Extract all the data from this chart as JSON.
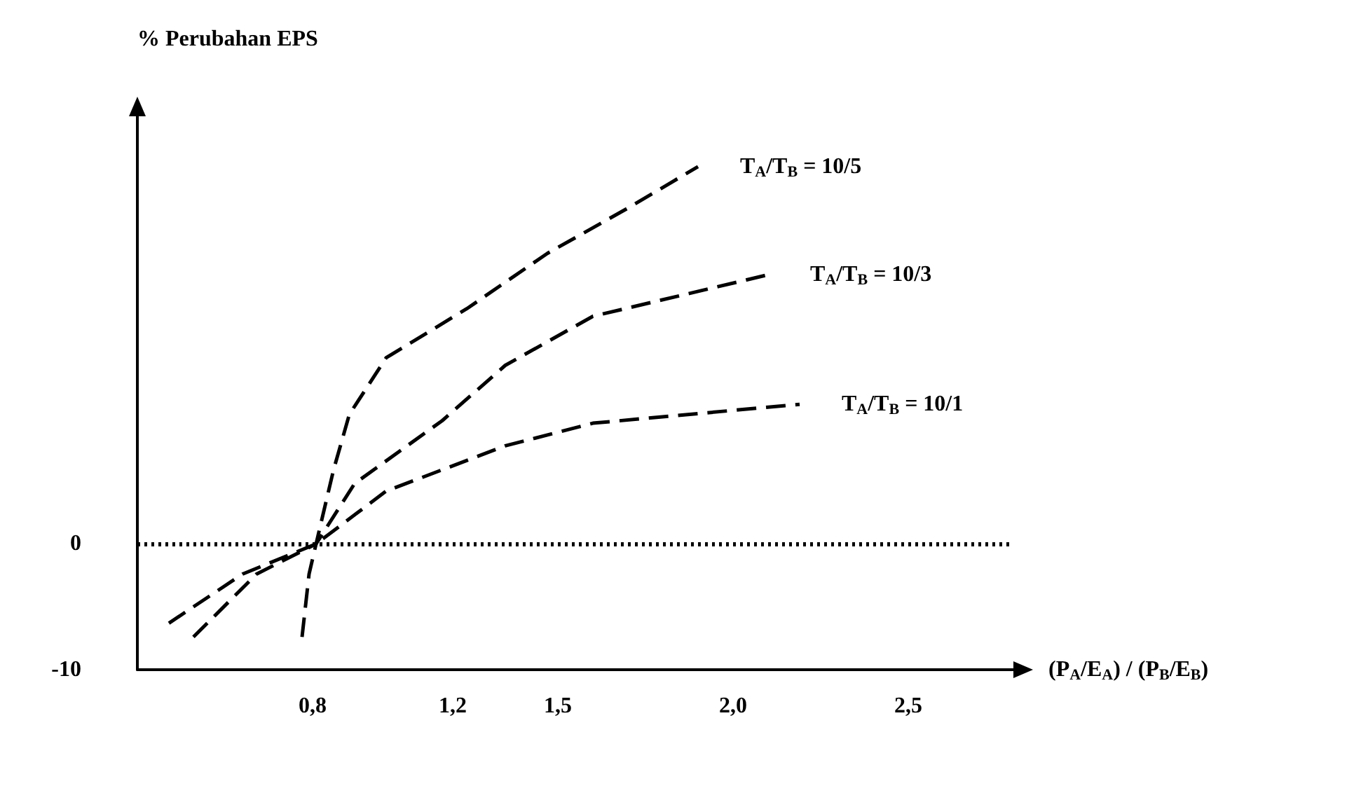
{
  "chart_data": {
    "type": "line",
    "ylabel": "% Perubahan EPS",
    "xlabel": "(P$_{A}$/E$_{A}$) / (P$_{B}$/E$_{B}$)",
    "xlim": [
      0.3,
      2.8
    ],
    "xticks": [
      {
        "value": 0.8,
        "label": "0,8"
      },
      {
        "value": 1.2,
        "label": "1,2"
      },
      {
        "value": 1.5,
        "label": "1,5"
      },
      {
        "value": 2.0,
        "label": "2,0"
      },
      {
        "value": 2.5,
        "label": "2,5"
      }
    ],
    "ylim": [
      -10,
      34
    ],
    "yticks": [
      -10,
      0
    ],
    "grid": false,
    "legend": false,
    "marker": "none",
    "line_style": "dashed",
    "series": [
      {
        "name": "T$_{A}$/T$_{B}$ = 10/5",
        "color": "#000000",
        "x": [
          0.77,
          0.79,
          0.81,
          0.86,
          0.905,
          1.01,
          1.24,
          1.47,
          1.7,
          1.9
        ],
        "values": [
          -7.4,
          -2.4,
          0,
          5.9,
          10.3,
          14.8,
          18.7,
          23.1,
          26.7,
          30
        ]
      },
      {
        "name": "T$_{A}$/T$_{B}$ = 10/3",
        "color": "#000000",
        "x": [
          0.46,
          0.64,
          0.81,
          0.92,
          1.17,
          1.35,
          1.6,
          2.1
        ],
        "values": [
          -7.4,
          -2.4,
          0,
          4.8,
          9.8,
          14.2,
          18.1,
          21.4
        ]
      },
      {
        "name": "T$_{A}$/T$_{B}$ = 10/1",
        "color": "#000000",
        "x": [
          0.39,
          0.6,
          0.81,
          1.01,
          1.35,
          1.6,
          2.19
        ],
        "values": [
          -6.3,
          -2.4,
          0,
          4.2,
          7.8,
          9.6,
          11.1
        ]
      }
    ],
    "ref_lines": [
      {
        "axis": "y",
        "value": 0,
        "label": null,
        "color": "#000000",
        "line_style": "dotted"
      }
    ]
  }
}
